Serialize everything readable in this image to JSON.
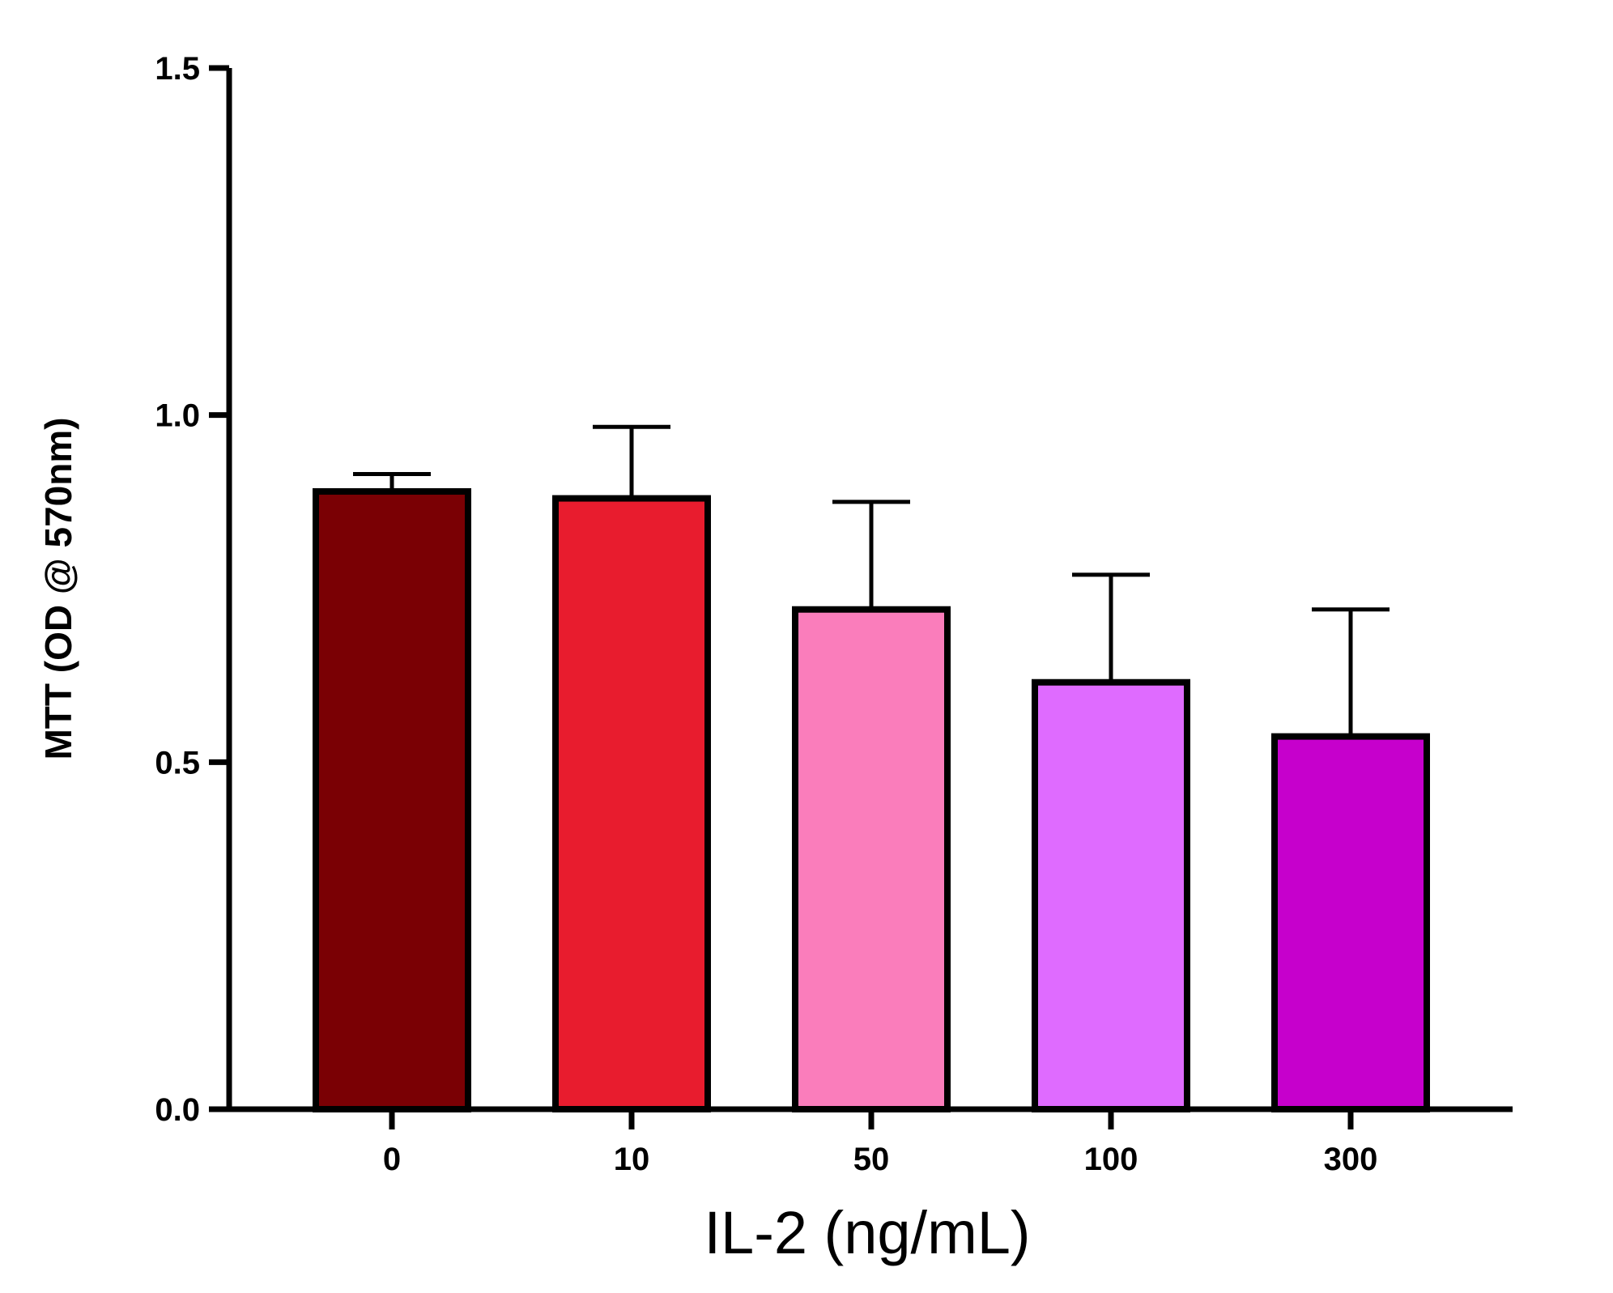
{
  "chart_data": {
    "type": "bar",
    "categories": [
      "0",
      "10",
      "50",
      "100",
      "300"
    ],
    "values": [
      0.89,
      0.88,
      0.72,
      0.615,
      0.537
    ],
    "error_upper": [
      0.915,
      0.983,
      0.875,
      0.77,
      0.72
    ],
    "colors": [
      "#7a0004",
      "#e81c2e",
      "#fa7dbb",
      "#df6bff",
      "#c600cc"
    ],
    "xlabel": "IL-2 (ng/mL)",
    "ylabel": "MTT (OD @ 570nm)",
    "ylim": [
      0,
      1.5
    ],
    "yticks": [
      "0.0",
      "0.5",
      "1.0",
      "1.5"
    ],
    "grid": false,
    "legend": "none"
  }
}
